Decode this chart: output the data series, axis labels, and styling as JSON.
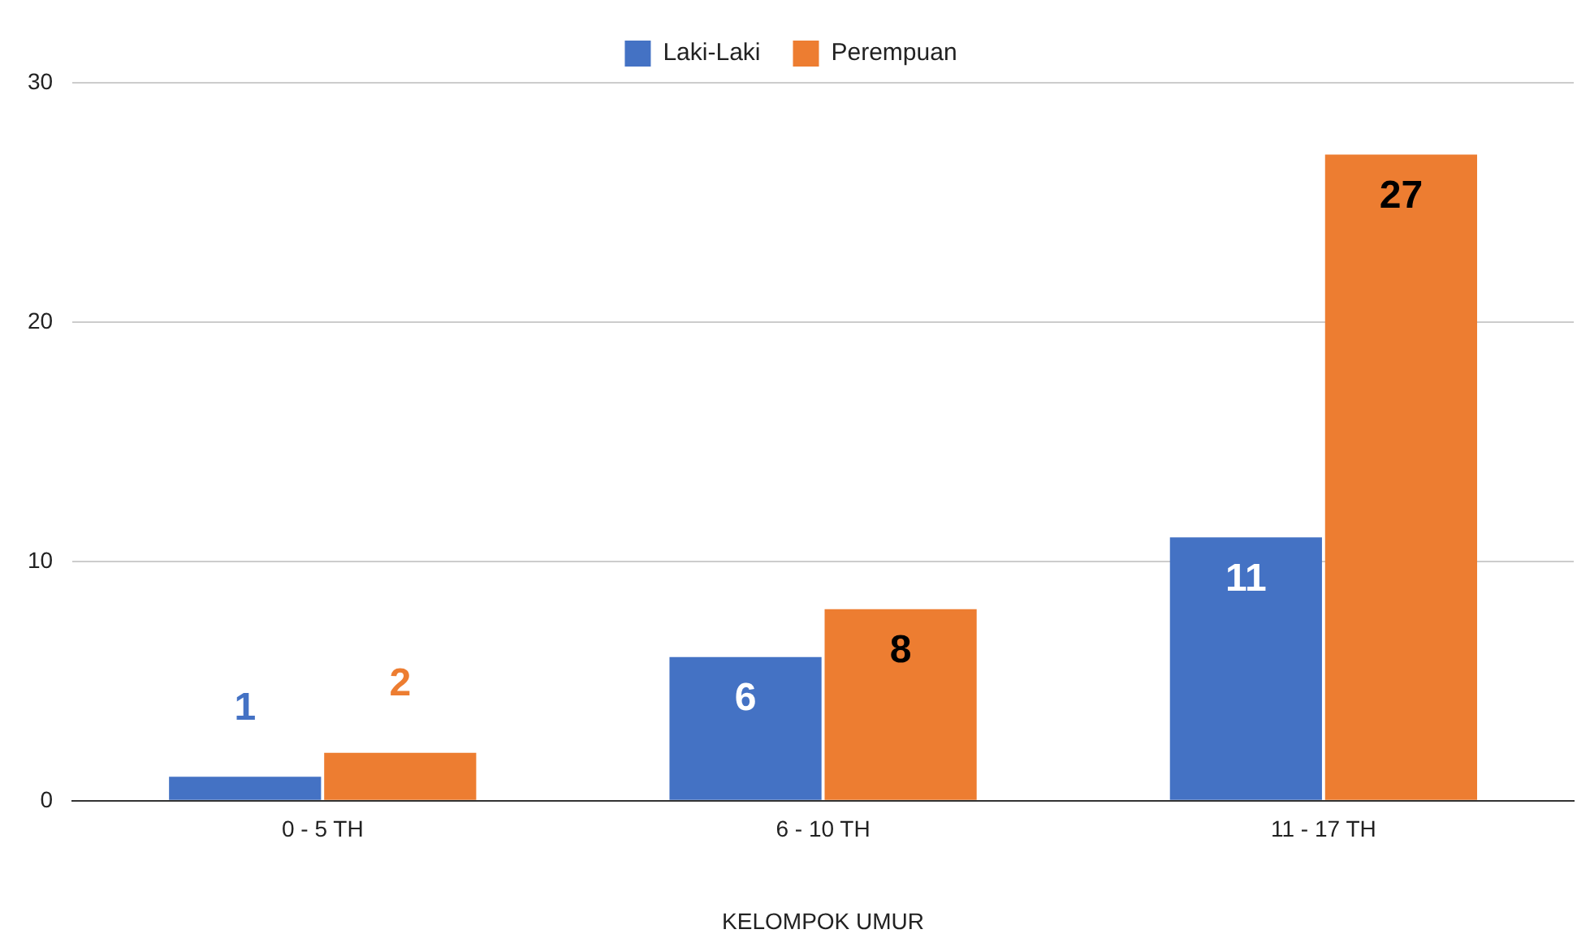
{
  "chart_data": {
    "type": "bar",
    "xlabel": "KELOMPOK UMUR",
    "categories": [
      "0 - 5 TH",
      "6 - 10 TH",
      "11 - 17 TH"
    ],
    "series": [
      {
        "name": "Laki-Laki",
        "color": "#4472c4",
        "values": [
          1,
          6,
          11
        ]
      },
      {
        "name": "Perempuan",
        "color": "#ed7d31",
        "values": [
          2,
          8,
          27
        ]
      }
    ],
    "ylim": [
      0,
      30
    ],
    "yticks": [
      0,
      10,
      20,
      30
    ],
    "grid": "y",
    "legend": "top",
    "data_labels": true
  }
}
